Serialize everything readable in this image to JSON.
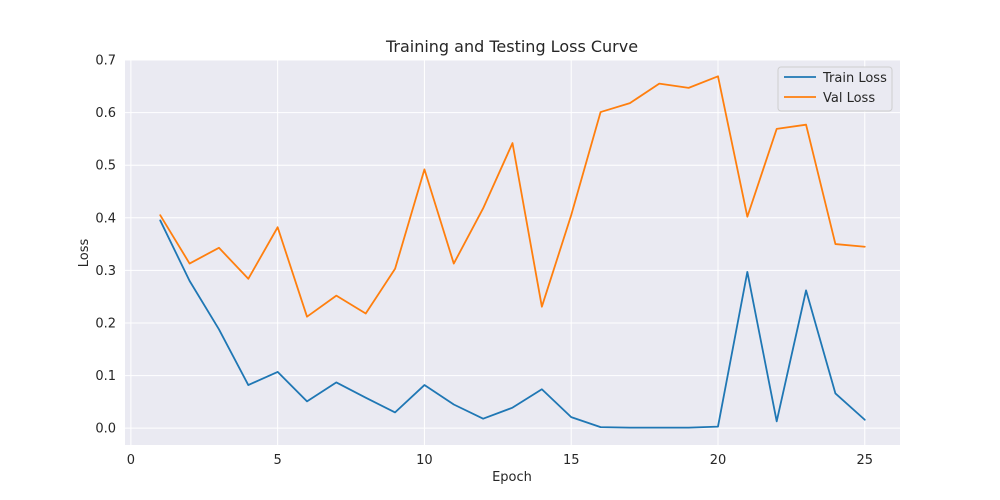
{
  "chart_data": {
    "type": "line",
    "title": "Training and Testing Loss Curve",
    "xlabel": "Epoch",
    "ylabel": "Loss",
    "xlim": [
      -0.2,
      26.2
    ],
    "ylim": [
      -0.032,
      0.7
    ],
    "xticks": [
      0,
      5,
      10,
      15,
      20,
      25
    ],
    "yticks": [
      0.0,
      0.1,
      0.2,
      0.3,
      0.4,
      0.5,
      0.6,
      0.7
    ],
    "xtick_labels": [
      "0",
      "5",
      "10",
      "15",
      "20",
      "25"
    ],
    "ytick_labels": [
      "0.0",
      "0.1",
      "0.2",
      "0.3",
      "0.4",
      "0.5",
      "0.6",
      "0.7"
    ],
    "grid": true,
    "legend_position": "top-right",
    "x": [
      1,
      2,
      3,
      4,
      5,
      6,
      7,
      8,
      9,
      10,
      11,
      12,
      13,
      14,
      15,
      16,
      17,
      18,
      19,
      20,
      21,
      22,
      23,
      24,
      25
    ],
    "series": [
      {
        "name": "Train Loss",
        "color": "#1f77b4",
        "values": [
          0.395,
          0.28,
          0.188,
          0.082,
          0.107,
          0.051,
          0.087,
          0.058,
          0.03,
          0.082,
          0.045,
          0.018,
          0.039,
          0.074,
          0.021,
          0.002,
          0.001,
          0.001,
          0.001,
          0.003,
          0.297,
          0.013,
          0.262,
          0.066,
          0.016
        ]
      },
      {
        "name": "Val Loss",
        "color": "#ff7f0e",
        "values": [
          0.405,
          0.313,
          0.343,
          0.284,
          0.382,
          0.212,
          0.252,
          0.218,
          0.303,
          0.492,
          0.313,
          0.418,
          0.542,
          0.231,
          0.405,
          0.601,
          0.618,
          0.655,
          0.647,
          0.669,
          0.402,
          0.569,
          0.577,
          0.35,
          0.345
        ]
      }
    ]
  }
}
